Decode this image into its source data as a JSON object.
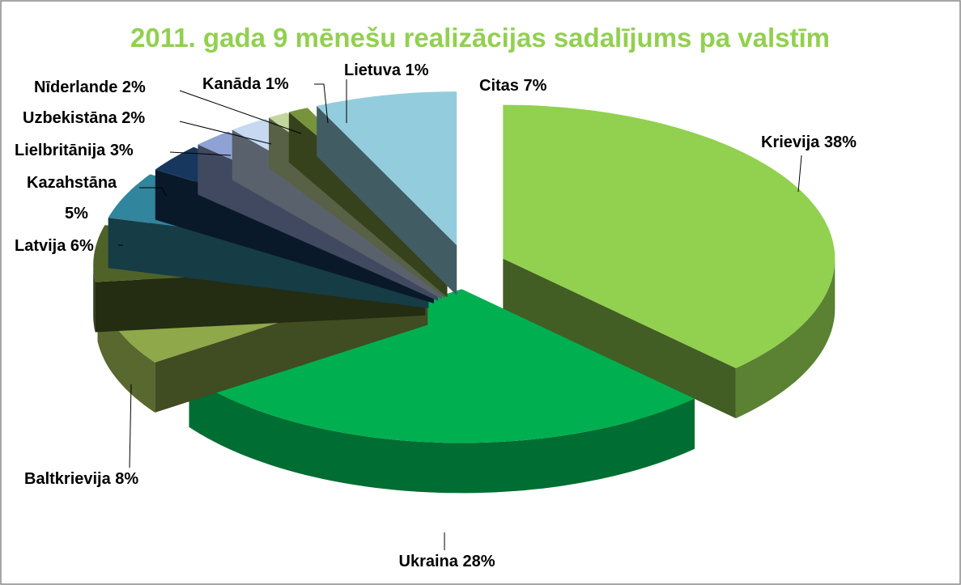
{
  "chart_data": {
    "type": "pie3d",
    "title": "2011. gada 9 mēnešu realizācijas sadalījums pa valstīm",
    "categories": [
      "Krievija",
      "Ukraina",
      "Baltkrievija",
      "Latvija",
      "Kazahstāna",
      "Lielbritānija",
      "Uzbekistāna",
      "Nīderlande",
      "Kanāda",
      "Lietuva",
      "Citas"
    ],
    "values": [
      38,
      28,
      8,
      6,
      5,
      3,
      2,
      2,
      1,
      1,
      7
    ],
    "value_labels": [
      "38%",
      "28%",
      "8%",
      "6%",
      "5%",
      "3%",
      "2%",
      "2%",
      "1%",
      "1%",
      "7%"
    ],
    "colors": [
      "#92d050",
      "#00b050",
      "#8ea84a",
      "#4f6228",
      "#31859c",
      "#17375e",
      "#8ea2d4",
      "#c6d9f1",
      "#c3d69b",
      "#77933c",
      "#93cddd"
    ]
  }
}
